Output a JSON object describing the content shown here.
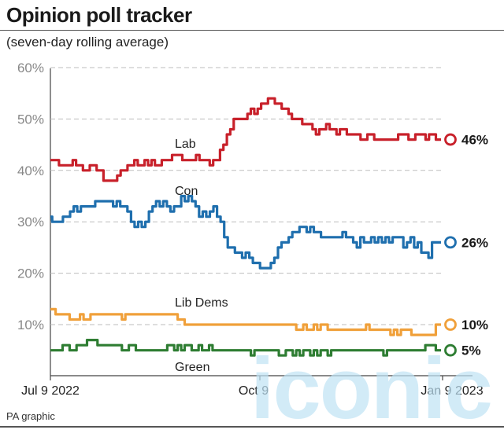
{
  "header": {
    "title": "Opinion poll tracker",
    "subtitle": "(seven-day rolling average)"
  },
  "footer": {
    "source": "PA graphic"
  },
  "watermark": {
    "text": "iconic"
  },
  "colors": {
    "lab": "#c8202a",
    "con": "#1f6fae",
    "libdem": "#f0a03a",
    "green": "#2e7d32",
    "grid": "#bdbdbd",
    "axis": "#444444"
  },
  "chart_data": {
    "type": "line",
    "y_ticks": [
      "60%",
      "50%",
      "40%",
      "30%",
      "20%",
      "10%"
    ],
    "x_ticks": [
      "Jul 9 2022",
      "Oct 9",
      "Jan 9 2023"
    ],
    "ylim": [
      0,
      60
    ],
    "grid": "horizontal dashed",
    "series": [
      {
        "name": "Lab",
        "color": "#c8202a",
        "end_label": "46%",
        "values": [
          42,
          42,
          42,
          41,
          41,
          41,
          41,
          42,
          41,
          41,
          40,
          40,
          41,
          41,
          40,
          40,
          38,
          38,
          38,
          38,
          39,
          40,
          40,
          41,
          41,
          42,
          41,
          41,
          42,
          41,
          42,
          41,
          41,
          42,
          42,
          42,
          43,
          43,
          43,
          42,
          42,
          42,
          42,
          43,
          42,
          42,
          42,
          41,
          42,
          42,
          44,
          45,
          47,
          48,
          50,
          50,
          50,
          50,
          51,
          52,
          51,
          52,
          53,
          53,
          54,
          54,
          53,
          53,
          52,
          52,
          51,
          50,
          50,
          50,
          49,
          49,
          49,
          48,
          47,
          48,
          48,
          49,
          48,
          48,
          47,
          48,
          48,
          47,
          47,
          47,
          47,
          46,
          46,
          47,
          47,
          46,
          46,
          46,
          46,
          46,
          46,
          46,
          47,
          47,
          47,
          46,
          46,
          47,
          47,
          47,
          46,
          47,
          47,
          46,
          46
        ]
      },
      {
        "name": "Con",
        "color": "#1f6fae",
        "end_label": "26%",
        "values": [
          31,
          30,
          30,
          30,
          31,
          31,
          32,
          33,
          32,
          33,
          33,
          33,
          33,
          34,
          34,
          34,
          34,
          34,
          33,
          34,
          33,
          33,
          32,
          30,
          29,
          30,
          29,
          30,
          32,
          33,
          34,
          33,
          34,
          33,
          32,
          33,
          33,
          35,
          34,
          35,
          34,
          33,
          31,
          32,
          31,
          32,
          33,
          31,
          30,
          27,
          25,
          25,
          24,
          24,
          23,
          24,
          23,
          22,
          22,
          21,
          21,
          21,
          22,
          23,
          25,
          26,
          26,
          27,
          28,
          28,
          29,
          29,
          28,
          29,
          28,
          28,
          27,
          27,
          27,
          27,
          27,
          27,
          28,
          27,
          27,
          26,
          25,
          27,
          26,
          26,
          27,
          26,
          27,
          26,
          27,
          26,
          27,
          27,
          27,
          25,
          26,
          27,
          25,
          26,
          24,
          24,
          23,
          26,
          26,
          26
        ]
      },
      {
        "name": "Lib Dems",
        "color": "#f0a03a",
        "end_label": "10%",
        "values": [
          13,
          13,
          12,
          12,
          12,
          12,
          11,
          11,
          11,
          12,
          11,
          11,
          12,
          12,
          12,
          12,
          12,
          12,
          12,
          12,
          12,
          11,
          12,
          12,
          12,
          12,
          12,
          12,
          12,
          12,
          12,
          12,
          12,
          12,
          12,
          12,
          12,
          11,
          11,
          10,
          10,
          10,
          10,
          10,
          10,
          10,
          10,
          10,
          10,
          10,
          10,
          10,
          10,
          10,
          10,
          10,
          10,
          10,
          10,
          10,
          10,
          10,
          10,
          10,
          10,
          10,
          10,
          10,
          10,
          10,
          10,
          9,
          9,
          10,
          9,
          9,
          10,
          9,
          10,
          10,
          9,
          9,
          9,
          9,
          9,
          9,
          9,
          9,
          9,
          9,
          9,
          10,
          9,
          9,
          9,
          9,
          9,
          9,
          8,
          9,
          8,
          9,
          9,
          9,
          8,
          8,
          8,
          8,
          8,
          8,
          8,
          10,
          10
        ]
      },
      {
        "name": "Green",
        "color": "#2e7d32",
        "end_label": "5%",
        "values": [
          5,
          5,
          5,
          5,
          6,
          6,
          5,
          5,
          6,
          6,
          6,
          7,
          7,
          7,
          6,
          6,
          6,
          6,
          6,
          6,
          6,
          5,
          5,
          6,
          6,
          5,
          5,
          5,
          5,
          5,
          5,
          5,
          5,
          5,
          6,
          6,
          5,
          6,
          5,
          6,
          6,
          5,
          5,
          6,
          5,
          5,
          6,
          5,
          5,
          5,
          5,
          5,
          5,
          5,
          5,
          5,
          5,
          5,
          4,
          5,
          5,
          5,
          5,
          5,
          5,
          5,
          4,
          4,
          5,
          5,
          4,
          5,
          4,
          5,
          5,
          4,
          5,
          4,
          5,
          5,
          4,
          5,
          5,
          5,
          5,
          5,
          5,
          5,
          5,
          5,
          5,
          5,
          5,
          5,
          5,
          5,
          4,
          5,
          5,
          5,
          5,
          5,
          5,
          5,
          5,
          5,
          5,
          5,
          6,
          6,
          6,
          5,
          5
        ]
      }
    ]
  },
  "series_labels": {
    "lab": "Lab",
    "con": "Con",
    "libdem": "Lib Dems",
    "green": "Green"
  }
}
